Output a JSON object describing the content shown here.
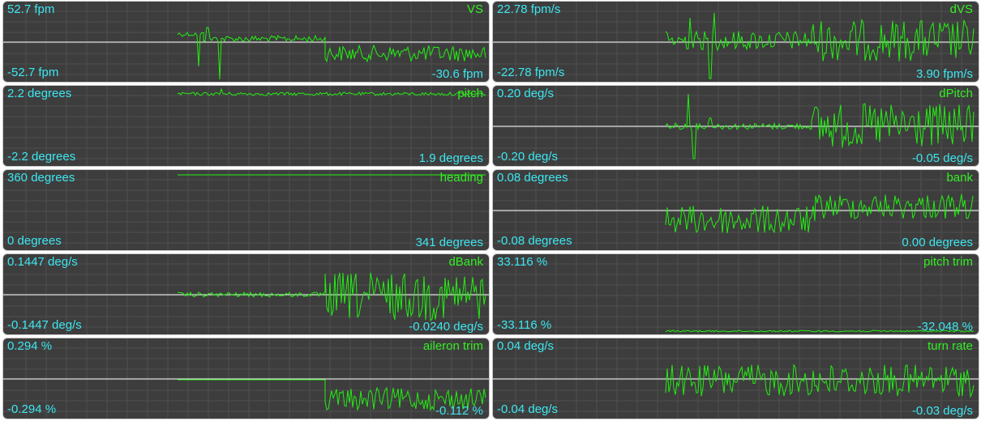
{
  "colors": {
    "panel_bg": "#3d3d3d",
    "grid": "#4f4f4f",
    "zero_line": "#ffffff",
    "trace": "#22ee11",
    "range_text": "#3ce6f0",
    "name_text": "#33ee22"
  },
  "panels": [
    {
      "name": "VS",
      "max_label": "52.7 fpm",
      "min_label": "-52.7 fpm",
      "current_label": "-30.6 fpm",
      "zero_line": true
    },
    {
      "name": "dVS",
      "max_label": "22.78 fpm/s",
      "min_label": "-22.78 fpm/s",
      "current_label": "3.90 fpm/s",
      "zero_line": true
    },
    {
      "name": "pitch",
      "max_label": "2.2 degrees",
      "min_label": "-2.2 degrees",
      "current_label": "1.9 degrees",
      "zero_line": false
    },
    {
      "name": "dPitch",
      "max_label": "0.20 deg/s",
      "min_label": "-0.20 deg/s",
      "current_label": "-0.05 deg/s",
      "zero_line": true
    },
    {
      "name": "heading",
      "max_label": "360 degrees",
      "min_label": "0 degrees",
      "current_label": "341 degrees",
      "zero_line": false
    },
    {
      "name": "bank",
      "max_label": "0.08 degrees",
      "min_label": "-0.08 degrees",
      "current_label": "0.00 degrees",
      "zero_line": true
    },
    {
      "name": "dBank",
      "max_label": "0.1447 deg/s",
      "min_label": "-0.1447 deg/s",
      "current_label": "-0.0240 deg/s",
      "zero_line": true
    },
    {
      "name": "pitch trim",
      "max_label": "33.116 %",
      "min_label": "-33.116 %",
      "current_label": "-32.048 %",
      "zero_line": false
    },
    {
      "name": "aileron trim",
      "max_label": "0.294 %",
      "min_label": "-0.294 %",
      "current_label": "-0.112 %",
      "zero_line": true
    },
    {
      "name": "turn rate",
      "max_label": "0.04 deg/s",
      "min_label": "-0.04 deg/s",
      "current_label": "-0.03 deg/s",
      "zero_line": true
    }
  ]
}
